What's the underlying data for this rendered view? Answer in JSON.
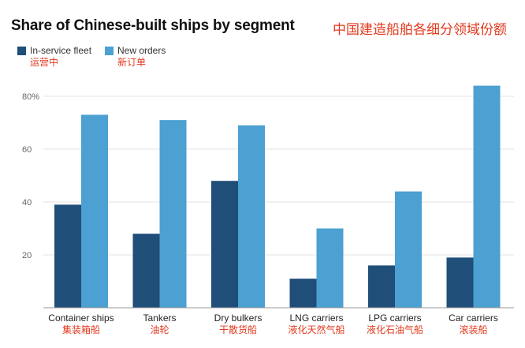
{
  "header": {
    "title": "Share of Chinese-built ships by segment",
    "title_cn": "中国建造船舶各细分领域份额"
  },
  "legend": [
    {
      "label": "In-service fleet",
      "label_cn": "运营中",
      "color": "#1f4e79"
    },
    {
      "label": "New orders",
      "label_cn": "新订单",
      "color": "#4ca0d2"
    }
  ],
  "chart_data": {
    "type": "bar",
    "title": "Share of Chinese-built ships by segment",
    "categories": [
      "Container ships",
      "Tankers",
      "Dry bulkers",
      "LNG carriers",
      "LPG carriers",
      "Car carriers"
    ],
    "categories_cn": [
      "集装箱船",
      "油轮",
      "干散货船",
      "液化天然气船",
      "液化石油气船",
      "滚装船"
    ],
    "series": [
      {
        "name": "In-service fleet",
        "color": "#1f4e79",
        "values": [
          39,
          28,
          48,
          11,
          16,
          19
        ]
      },
      {
        "name": "New orders",
        "color": "#4ca0d2",
        "values": [
          73,
          71,
          69,
          30,
          44,
          84
        ]
      }
    ],
    "yticks": [
      20,
      40,
      60,
      80
    ],
    "ytick_labels": [
      "20",
      "40",
      "60",
      "80%"
    ],
    "ylim": [
      0,
      90
    ],
    "grid": true,
    "legend_position": "top-left"
  }
}
